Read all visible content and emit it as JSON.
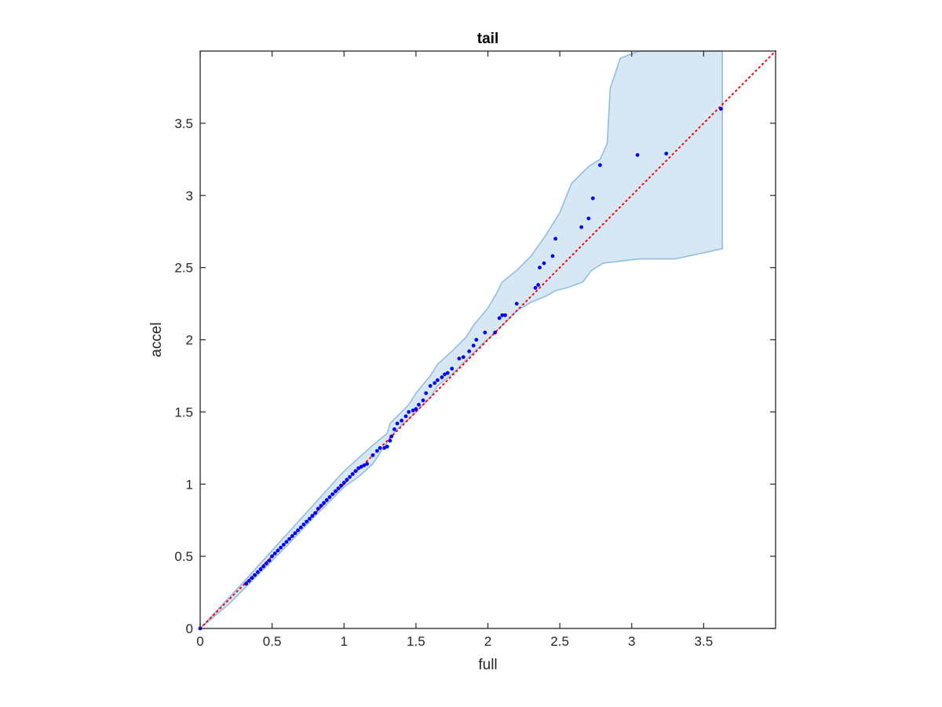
{
  "chart_data": {
    "type": "scatter",
    "title": "tail",
    "xlabel": "full",
    "ylabel": "accel",
    "xlim": [
      0,
      4
    ],
    "ylim": [
      0,
      4
    ],
    "xticks": [
      0,
      0.5,
      1,
      1.5,
      2,
      2.5,
      3,
      3.5
    ],
    "yticks": [
      0,
      0.5,
      1,
      1.5,
      2,
      2.5,
      3,
      3.5
    ],
    "xtick_labels": [
      "0",
      "0.5",
      "1",
      "1.5",
      "2",
      "2.5",
      "3",
      "3.5"
    ],
    "ytick_labels": [
      "0",
      "0.5",
      "1",
      "1.5",
      "2",
      "2.5",
      "3",
      "3.5"
    ],
    "grid": false,
    "colors": {
      "points": "#0000ff",
      "reference_line": "#ff0000",
      "band_fill": "#d7e8f4",
      "band_edge": "#8fbfe0",
      "axes": "#262626"
    },
    "reference_line": {
      "x": [
        0,
        4
      ],
      "y": [
        0,
        4
      ],
      "style": "dotted"
    },
    "confidence_band": {
      "upper": [
        [
          0,
          0
        ],
        [
          0.3,
          0.32
        ],
        [
          0.5,
          0.54
        ],
        [
          0.7,
          0.76
        ],
        [
          0.9,
          0.98
        ],
        [
          1.0,
          1.09
        ],
        [
          1.1,
          1.18
        ],
        [
          1.2,
          1.27
        ],
        [
          1.3,
          1.35
        ],
        [
          1.32,
          1.42
        ],
        [
          1.38,
          1.48
        ],
        [
          1.45,
          1.55
        ],
        [
          1.5,
          1.63
        ],
        [
          1.6,
          1.75
        ],
        [
          1.65,
          1.83
        ],
        [
          1.75,
          1.92
        ],
        [
          1.85,
          2.02
        ],
        [
          1.9,
          2.1
        ],
        [
          2.0,
          2.22
        ],
        [
          2.06,
          2.32
        ],
        [
          2.1,
          2.4
        ],
        [
          2.2,
          2.48
        ],
        [
          2.3,
          2.58
        ],
        [
          2.4,
          2.72
        ],
        [
          2.5,
          2.88
        ],
        [
          2.58,
          3.08
        ],
        [
          2.7,
          3.2
        ],
        [
          2.78,
          3.25
        ],
        [
          2.83,
          3.36
        ],
        [
          2.85,
          3.74
        ],
        [
          2.92,
          3.95
        ],
        [
          3.05,
          4.0
        ],
        [
          3.63,
          4.0
        ]
      ],
      "lower": [
        [
          3.63,
          2.63
        ],
        [
          3.3,
          2.56
        ],
        [
          3.05,
          2.56
        ],
        [
          2.8,
          2.53
        ],
        [
          2.72,
          2.48
        ],
        [
          2.66,
          2.4
        ],
        [
          2.55,
          2.36
        ],
        [
          2.47,
          2.34
        ],
        [
          2.4,
          2.3
        ],
        [
          2.3,
          2.26
        ],
        [
          2.2,
          2.2
        ],
        [
          2.12,
          2.12
        ],
        [
          2.05,
          2.05
        ],
        [
          1.95,
          1.96
        ],
        [
          1.85,
          1.86
        ],
        [
          1.75,
          1.76
        ],
        [
          1.65,
          1.68
        ],
        [
          1.6,
          1.6
        ],
        [
          1.55,
          1.55
        ],
        [
          1.5,
          1.5
        ],
        [
          1.45,
          1.45
        ],
        [
          1.4,
          1.41
        ],
        [
          1.35,
          1.36
        ],
        [
          1.3,
          1.29
        ],
        [
          1.2,
          1.14
        ],
        [
          1.1,
          1.05
        ],
        [
          1.0,
          0.98
        ],
        [
          0.8,
          0.78
        ],
        [
          0.6,
          0.57
        ],
        [
          0.4,
          0.37
        ],
        [
          0.2,
          0.17
        ],
        [
          0,
          0
        ]
      ]
    },
    "series": [
      {
        "points": [
          [
            0.0,
            0.0
          ],
          [
            0.32,
            0.31
          ],
          [
            0.34,
            0.33
          ],
          [
            0.36,
            0.35
          ],
          [
            0.38,
            0.37
          ],
          [
            0.4,
            0.39
          ],
          [
            0.42,
            0.41
          ],
          [
            0.44,
            0.43
          ],
          [
            0.46,
            0.45
          ],
          [
            0.48,
            0.47
          ],
          [
            0.5,
            0.5
          ],
          [
            0.52,
            0.52
          ],
          [
            0.54,
            0.54
          ],
          [
            0.56,
            0.56
          ],
          [
            0.58,
            0.58
          ],
          [
            0.6,
            0.6
          ],
          [
            0.62,
            0.62
          ],
          [
            0.64,
            0.64
          ],
          [
            0.66,
            0.66
          ],
          [
            0.68,
            0.68
          ],
          [
            0.7,
            0.7
          ],
          [
            0.72,
            0.72
          ],
          [
            0.74,
            0.74
          ],
          [
            0.76,
            0.76
          ],
          [
            0.78,
            0.78
          ],
          [
            0.8,
            0.8
          ],
          [
            0.82,
            0.83
          ],
          [
            0.84,
            0.85
          ],
          [
            0.86,
            0.87
          ],
          [
            0.88,
            0.89
          ],
          [
            0.9,
            0.91
          ],
          [
            0.92,
            0.93
          ],
          [
            0.94,
            0.95
          ],
          [
            0.96,
            0.97
          ],
          [
            0.98,
            0.99
          ],
          [
            1.0,
            1.01
          ],
          [
            1.02,
            1.03
          ],
          [
            1.04,
            1.05
          ],
          [
            1.06,
            1.07
          ],
          [
            1.08,
            1.09
          ],
          [
            1.1,
            1.11
          ],
          [
            1.12,
            1.12
          ],
          [
            1.14,
            1.13
          ],
          [
            1.16,
            1.14
          ],
          [
            1.2,
            1.2
          ],
          [
            1.23,
            1.23
          ],
          [
            1.25,
            1.25
          ],
          [
            1.28,
            1.25
          ],
          [
            1.3,
            1.26
          ],
          [
            1.32,
            1.3
          ],
          [
            1.33,
            1.33
          ],
          [
            1.35,
            1.38
          ],
          [
            1.37,
            1.42
          ],
          [
            1.4,
            1.44
          ],
          [
            1.43,
            1.47
          ],
          [
            1.45,
            1.5
          ],
          [
            1.48,
            1.51
          ],
          [
            1.5,
            1.52
          ],
          [
            1.52,
            1.55
          ],
          [
            1.55,
            1.58
          ],
          [
            1.57,
            1.63
          ],
          [
            1.6,
            1.68
          ],
          [
            1.63,
            1.7
          ],
          [
            1.65,
            1.72
          ],
          [
            1.68,
            1.74
          ],
          [
            1.7,
            1.76
          ],
          [
            1.72,
            1.77
          ],
          [
            1.75,
            1.8
          ],
          [
            1.8,
            1.87
          ],
          [
            1.83,
            1.88
          ],
          [
            1.87,
            1.92
          ],
          [
            1.9,
            1.96
          ],
          [
            1.92,
            2.0
          ],
          [
            1.98,
            2.05
          ],
          [
            2.05,
            2.05
          ],
          [
            2.08,
            2.15
          ],
          [
            2.1,
            2.17
          ],
          [
            2.12,
            2.17
          ],
          [
            2.2,
            2.25
          ],
          [
            2.33,
            2.36
          ],
          [
            2.35,
            2.38
          ],
          [
            2.36,
            2.5
          ],
          [
            2.39,
            2.53
          ],
          [
            2.45,
            2.58
          ],
          [
            2.47,
            2.7
          ],
          [
            2.65,
            2.78
          ],
          [
            2.7,
            2.84
          ],
          [
            2.73,
            2.98
          ],
          [
            2.78,
            3.21
          ],
          [
            3.04,
            3.28
          ],
          [
            3.24,
            3.29
          ],
          [
            3.62,
            3.6
          ]
        ]
      }
    ]
  }
}
